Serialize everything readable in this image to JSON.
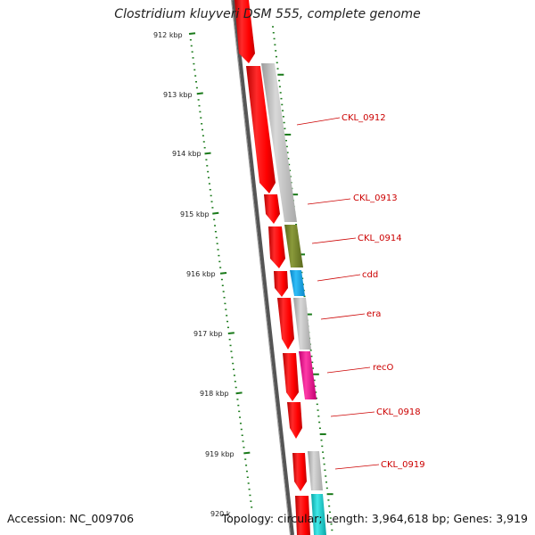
{
  "title": "Clostridium kluyveri DSM 555, complete genome",
  "footer": {
    "accession": "Accession: NC_009706",
    "summary": "Topology: circular; Length: 3,964,618 bp; Genes: 3,919"
  },
  "ruler": {
    "labels": [
      "912 kbp",
      "913 kbp",
      "914 kbp",
      "915 kbp",
      "916 kbp",
      "917 kbp",
      "918 kbp",
      "919 kbp",
      "920 k"
    ]
  },
  "gene_labels": [
    "CKL_0912",
    "CKL_0913",
    "CKL_0914",
    "cdd",
    "era",
    "recO",
    "CKL_0918",
    "CKL_0919"
  ],
  "colors": {
    "forward_gene": "#ff0000",
    "reverse_gray": "#c0c0c0",
    "olive": "#7b8a2e",
    "blue": "#1aa7ee",
    "magenta": "#ee1a96",
    "cyan": "#1acfcf",
    "tick": "#1a7a1a",
    "label_line": "#cc0000",
    "backbone": "#555555"
  }
}
